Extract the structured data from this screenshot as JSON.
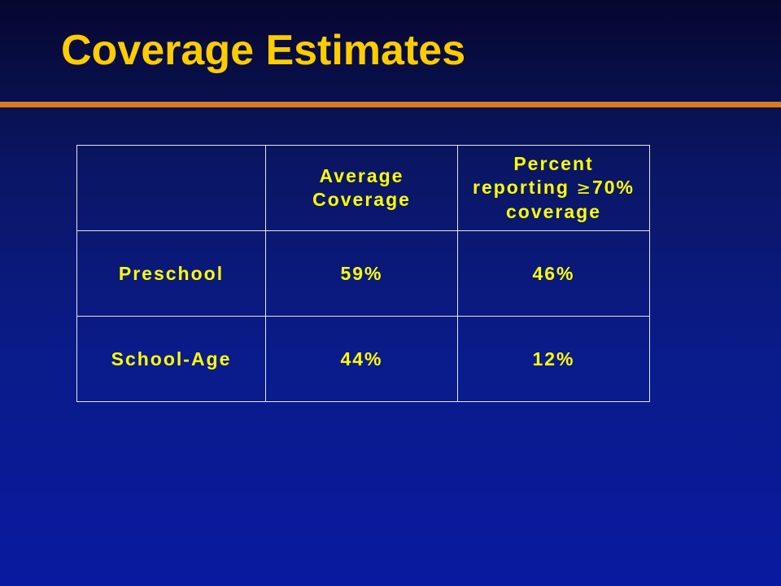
{
  "slide": {
    "title": "Coverage Estimates"
  },
  "table": {
    "header": {
      "corner": "",
      "col1": "Average Coverage",
      "col2_line1": "Percent",
      "col2_line2_pre": "reporting",
      "col2_symbol": "≥",
      "col2_line2_post": "70%",
      "col2_line3": "coverage"
    },
    "rows": [
      {
        "label": "Preschool",
        "average": "59%",
        "percent": "46%"
      },
      {
        "label": "School-Age",
        "average": "44%",
        "percent": "12%"
      }
    ]
  },
  "colors": {
    "title": "#ffcc00",
    "accent_rule": "#d97a1f",
    "cell_text": "#ffff00",
    "grid": "#e6e6e6"
  }
}
